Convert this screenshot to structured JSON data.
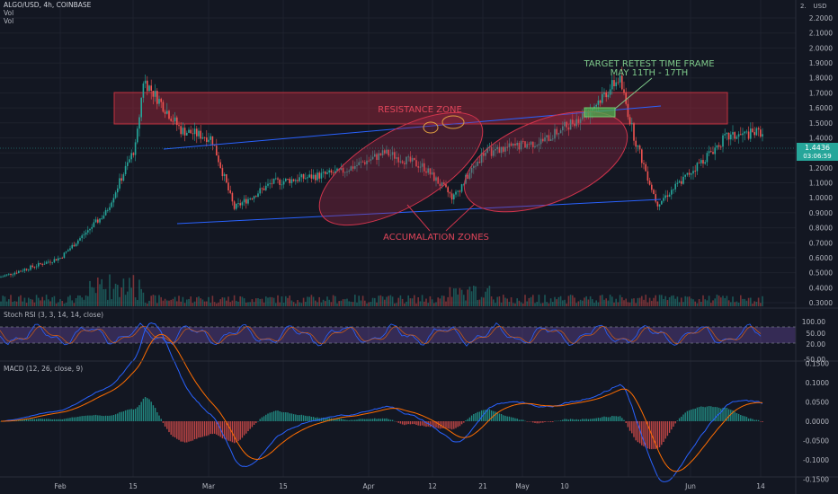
{
  "header": {
    "symbol": "ALGO/USD, 4h, COINBASE",
    "vol_label_1": "Vol",
    "vol_label_2": "Vol"
  },
  "price_axis": {
    "currency": "USD",
    "ticks": [
      "2.1000",
      "2.0000",
      "1.9000",
      "1.8000",
      "1.7000",
      "1.6000",
      "1.5000",
      "1.4000",
      "1.3000",
      "1.2000",
      "1.1000",
      "1.0000",
      "0.9000",
      "0.8000",
      "0.7000",
      "0.6000",
      "0.5000",
      "0.4000",
      "0.3000"
    ],
    "top_partial": "2.",
    "second_partial": "2.2000",
    "current_price": "1.4436",
    "countdown": "03:06:59",
    "current_color": "#26a69a"
  },
  "stoch_rsi": {
    "label": "Stoch RSI (3, 3, 14, 14, close)",
    "ticks": [
      "100.00",
      "50.00",
      "20.00",
      "-50.00"
    ]
  },
  "macd": {
    "label": "MACD (12, 26, close, 9)",
    "ticks": [
      "0.1500",
      "0.1000",
      "0.0500",
      "0.0000",
      "-0.0500",
      "-0.1000",
      "-0.1500"
    ]
  },
  "time_axis": [
    "Feb",
    "15",
    "Mar",
    "15",
    "Apr",
    "12",
    "21",
    "May",
    "10",
    "Jun",
    "14"
  ],
  "annotations": {
    "target_line1": "TARGET RETEST TIME FRAME",
    "target_line2": "MAY 11TH - 17TH",
    "resistance": "RESISTANCE ZONE",
    "accumulation": "ACCUMALATION ZONES"
  },
  "colors": {
    "background": "#131722",
    "up": "#26a69a",
    "down": "#ef5350",
    "trendline": "#2962ff",
    "zone": "#b2283d",
    "stoch_band": "#7e57c2",
    "target_text": "#7ec98a"
  },
  "chart_data": {
    "type": "candlestick",
    "title": "ALGO/USD, 4h, COINBASE",
    "price_range": [
      0.25,
      2.2
    ],
    "key_levels": {
      "resistance_zone": [
        1.63,
        1.87
      ],
      "ascending_support_start": 0.86,
      "ascending_support_end": 1.06,
      "ascending_resistance_start": 1.44,
      "ascending_resistance_end": 1.75
    },
    "price_path": [
      {
        "date": "Jan 24",
        "price": 0.47
      },
      {
        "date": "Feb 01",
        "price": 0.6
      },
      {
        "date": "Feb 07",
        "price": 0.9
      },
      {
        "date": "Feb 11",
        "price": 1.35
      },
      {
        "date": "Feb 12",
        "price": 1.79
      },
      {
        "date": "Feb 17",
        "price": 1.45
      },
      {
        "date": "Feb 21",
        "price": 1.4
      },
      {
        "date": "Feb 24",
        "price": 0.93
      },
      {
        "date": "Mar 01",
        "price": 1.1
      },
      {
        "date": "Mar 10",
        "price": 1.17
      },
      {
        "date": "Mar 16",
        "price": 1.3
      },
      {
        "date": "Mar 21",
        "price": 1.21
      },
      {
        "date": "Mar 25",
        "price": 1.0
      },
      {
        "date": "Mar 29",
        "price": 1.3
      },
      {
        "date": "Apr 06",
        "price": 1.38
      },
      {
        "date": "Apr 12",
        "price": 1.58
      },
      {
        "date": "Apr 16",
        "price": 1.8
      },
      {
        "date": "Apr 18",
        "price": 1.4
      },
      {
        "date": "Apr 21",
        "price": 0.96
      },
      {
        "date": "Apr 24",
        "price": 1.1
      },
      {
        "date": "Apr 30",
        "price": 1.4
      },
      {
        "date": "May 05",
        "price": 1.44
      }
    ]
  }
}
